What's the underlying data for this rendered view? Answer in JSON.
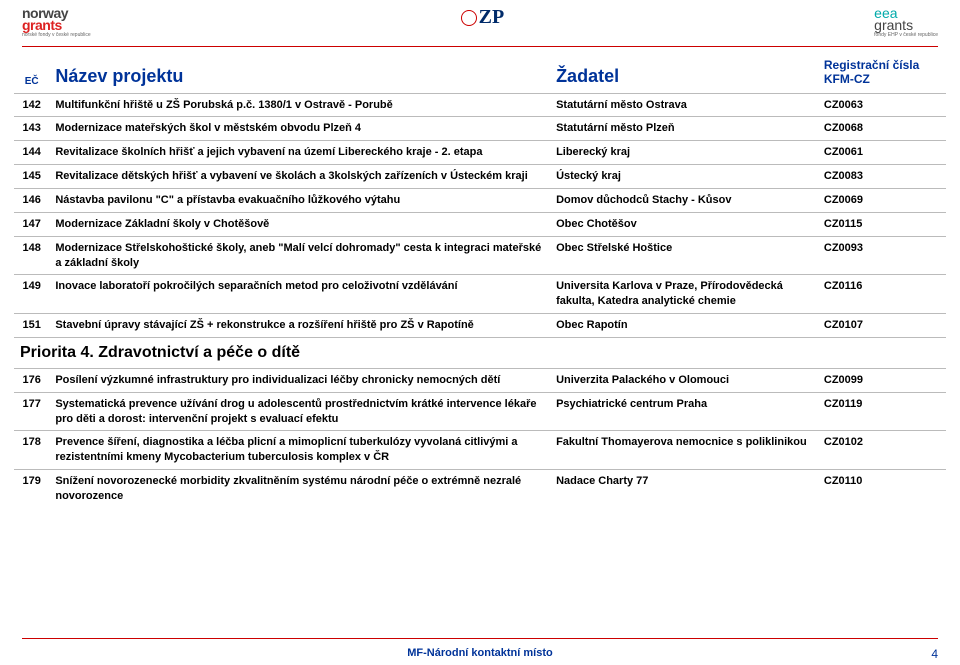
{
  "logos": {
    "left": {
      "line1": "norway",
      "line2": "grants",
      "sub": "norské fondy v české republice"
    },
    "center": {
      "letters": "ZP"
    },
    "right": {
      "line1": "eea",
      "line2": "grants",
      "sub": "fondy EHP v české republice"
    }
  },
  "header": {
    "ec": "EČ",
    "nazev": "Název projektu",
    "zadatel": "Žadatel",
    "reg": "Registrační čísla KFM-CZ"
  },
  "rows": [
    {
      "ec": "142",
      "naz": "Multifunkční hřiště u ZŠ Porubská p.č. 1380/1 v Ostravě - Porubě",
      "zad": "Statutární město Ostrava",
      "reg": "CZ0063"
    },
    {
      "ec": "143",
      "naz": "Modernizace mateřských škol v městském obvodu Plzeň 4",
      "zad": "Statutární město Plzeň",
      "reg": "CZ0068"
    },
    {
      "ec": "144",
      "naz": "Revitalizace školních hřišť a jejich vybavení na území Libereckého kraje - 2. etapa",
      "zad": "Liberecký kraj",
      "reg": "CZ0061"
    },
    {
      "ec": "145",
      "naz": "Revitalizace dětských hřišť a vybavení ve školách a 3kolských zařízeních v Ústeckém kraji",
      "zad": "Ústecký kraj",
      "reg": "CZ0083"
    },
    {
      "ec": "146",
      "naz": "Nástavba pavilonu \"C\" a přístavba evakuačního lůžkového výtahu",
      "zad": "Domov důchodců Stachy - Kůsov",
      "reg": "CZ0069"
    },
    {
      "ec": "147",
      "naz": "Modernizace Základní školy v Chotěšově",
      "zad": "Obec Chotěšov",
      "reg": "CZ0115"
    },
    {
      "ec": "148",
      "naz": "Modernizace Střelskohoštické školy, aneb \"Malí velcí dohromady\" cesta k integraci mateřské a základní školy",
      "zad": "Obec Střelské Hoštice",
      "reg": "CZ0093"
    },
    {
      "ec": "149",
      "naz": "Inovace laboratoří pokročilých separačních metod pro celoživotní vzdělávání",
      "zad": "Universita Karlova v Praze, Přírodovědecká fakulta, Katedra analytické chemie",
      "reg": "CZ0116"
    },
    {
      "ec": "151",
      "naz": "Stavební úpravy stávající ZŠ + rekonstrukce a rozšíření hřiště pro ZŠ v Rapotíně",
      "zad": "Obec Rapotín",
      "reg": "CZ0107"
    }
  ],
  "section": "Priorita 4. Zdravotnictví a péče o dítě",
  "rows2": [
    {
      "ec": "176",
      "naz": "Posílení výzkumné infrastruktury pro individualizaci léčby chronicky nemocných dětí",
      "zad": "Univerzita Palackého v Olomouci",
      "reg": "CZ0099"
    },
    {
      "ec": "177",
      "naz": "Systematická prevence užívání drog u adolescentů prostřednictvím krátké intervence lékaře pro děti a dorost: intervenční projekt s evaluací efektu",
      "zad": "Psychiatrické centrum Praha",
      "reg": "CZ0119"
    },
    {
      "ec": "178",
      "naz": "Prevence šíření, diagnostika a léčba plicní a mimoplicní tuberkulózy vyvolaná citlivými a rezistentními kmeny Mycobacterium tuberculosis komplex v ČR",
      "zad": "Fakultní Thomayerova nemocnice s poliklinikou",
      "reg": "CZ0102"
    },
    {
      "ec": "179",
      "naz": "Snížení novorozenecké morbidity zkvalitněním systému národní péče o extrémně nezralé novorozence",
      "zad": "Nadace Charty 77",
      "reg": "CZ0110"
    }
  ],
  "footer": {
    "center": "MF-Národní kontaktní místo",
    "page": "4"
  }
}
